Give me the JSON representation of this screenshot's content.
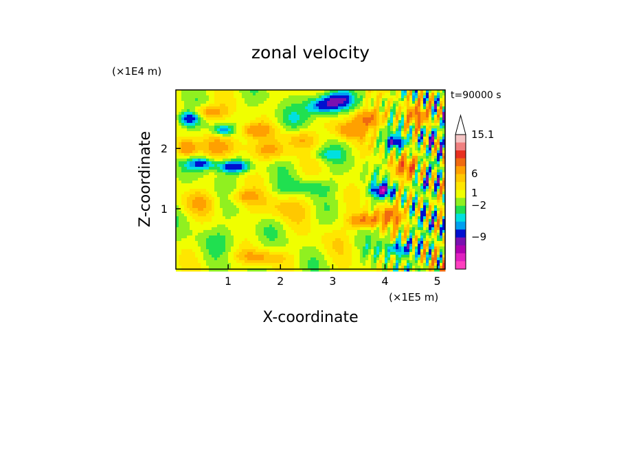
{
  "chart_data": {
    "type": "heatmap",
    "title": "zonal velocity",
    "xlabel": "X-coordinate",
    "ylabel": "Z-coordinate",
    "x_unit_label": "(×1E5 m)",
    "y_unit_label": "(×1E4 m)",
    "time_label": "t=90000 s",
    "xlim": [
      0,
      5.15
    ],
    "ylim": [
      0,
      2.97
    ],
    "x_ticks": [
      1,
      2,
      3,
      4,
      5
    ],
    "y_ticks": [
      1,
      2
    ],
    "colorbar": {
      "labels": [
        "15.1",
        "6",
        "1",
        "−2",
        "−9"
      ],
      "levels": [
        {
          "value": 15.1,
          "color": "#f4c4c4"
        },
        {
          "value": 12,
          "color": "#f08080"
        },
        {
          "value": 9,
          "color": "#e83020"
        },
        {
          "value": 6,
          "color": "#f06a10"
        },
        {
          "value": 4,
          "color": "#ffa000"
        },
        {
          "value": 3,
          "color": "#ffc800"
        },
        {
          "value": 2,
          "color": "#ffe600"
        },
        {
          "value": 1,
          "color": "#f0ff00"
        },
        {
          "value": 0,
          "color": "#90f020"
        },
        {
          "value": -1,
          "color": "#20e050"
        },
        {
          "value": -2,
          "color": "#00e0e0"
        },
        {
          "value": -3,
          "color": "#00a0f0"
        },
        {
          "value": -5,
          "color": "#0010d0"
        },
        {
          "value": -7,
          "color": "#7a10b0"
        },
        {
          "value": -9,
          "color": "#b000b0"
        },
        {
          "value": -11,
          "color": "#e020c0"
        },
        {
          "value": -13,
          "color": "#ff40c0"
        }
      ]
    },
    "blobs": [
      {
        "x": 0.25,
        "y": 2.5,
        "v": -6,
        "sx": 0.2,
        "sy": 0.12
      },
      {
        "x": 0.6,
        "y": 2.6,
        "v": 4,
        "sx": 0.35,
        "sy": 0.12
      },
      {
        "x": 0.9,
        "y": 2.3,
        "v": -4,
        "sx": 0.2,
        "sy": 0.08
      },
      {
        "x": 0.2,
        "y": 2.0,
        "v": 5,
        "sx": 0.2,
        "sy": 0.15
      },
      {
        "x": 0.5,
        "y": 1.75,
        "v": -5,
        "sx": 0.25,
        "sy": 0.1
      },
      {
        "x": 1.1,
        "y": 1.7,
        "v": -6,
        "sx": 0.3,
        "sy": 0.1
      },
      {
        "x": 1.0,
        "y": 2.05,
        "v": 3,
        "sx": 0.45,
        "sy": 0.18
      },
      {
        "x": 1.5,
        "y": 2.3,
        "v": 4,
        "sx": 0.3,
        "sy": 0.12
      },
      {
        "x": 1.8,
        "y": 1.95,
        "v": 3,
        "sx": 0.35,
        "sy": 0.15
      },
      {
        "x": 2.2,
        "y": 2.5,
        "v": -1,
        "sx": 0.35,
        "sy": 0.15
      },
      {
        "x": 2.4,
        "y": 2.15,
        "v": 3,
        "sx": 0.3,
        "sy": 0.15
      },
      {
        "x": 2.8,
        "y": 2.7,
        "v": -6,
        "sx": 0.3,
        "sy": 0.15
      },
      {
        "x": 3.1,
        "y": 2.8,
        "v": -6,
        "sx": 0.25,
        "sy": 0.12
      },
      {
        "x": 3.3,
        "y": 2.3,
        "v": 4,
        "sx": 0.3,
        "sy": 0.15
      },
      {
        "x": 3.7,
        "y": 2.5,
        "v": 5,
        "sx": 0.3,
        "sy": 0.15
      },
      {
        "x": 4.2,
        "y": 2.1,
        "v": -5,
        "sx": 0.2,
        "sy": 0.1
      },
      {
        "x": 4.6,
        "y": 2.55,
        "v": 4,
        "sx": 0.25,
        "sy": 0.15
      },
      {
        "x": 4.85,
        "y": 2.2,
        "v": -4,
        "sx": 0.2,
        "sy": 0.12
      },
      {
        "x": 4.4,
        "y": 1.7,
        "v": 5,
        "sx": 0.25,
        "sy": 0.15
      },
      {
        "x": 3.95,
        "y": 1.3,
        "v": -7,
        "sx": 0.2,
        "sy": 0.1
      },
      {
        "x": 4.7,
        "y": 1.4,
        "v": -3,
        "sx": 0.2,
        "sy": 0.12
      },
      {
        "x": 3.6,
        "y": 0.8,
        "v": 5,
        "sx": 0.3,
        "sy": 0.12
      },
      {
        "x": 4.1,
        "y": 0.9,
        "v": 5,
        "sx": 0.25,
        "sy": 0.15
      },
      {
        "x": 4.3,
        "y": 0.35,
        "v": -5,
        "sx": 0.3,
        "sy": 0.12
      },
      {
        "x": 2.5,
        "y": 1.35,
        "v": -2,
        "sx": 0.5,
        "sy": 0.12
      },
      {
        "x": 2.0,
        "y": 1.0,
        "v": 2,
        "sx": 0.6,
        "sy": 0.2
      },
      {
        "x": 3.0,
        "y": 0.5,
        "v": 1,
        "sx": 0.4,
        "sy": 0.25
      },
      {
        "x": 1.0,
        "y": 0.5,
        "v": -1,
        "sx": 0.5,
        "sy": 0.2
      },
      {
        "x": 1.6,
        "y": 0.2,
        "v": 3,
        "sx": 0.5,
        "sy": 0.12
      },
      {
        "x": 0.4,
        "y": 1.1,
        "v": 2,
        "sx": 0.35,
        "sy": 0.2
      },
      {
        "x": 1.3,
        "y": 1.2,
        "v": 3,
        "sx": 0.3,
        "sy": 0.12
      },
      {
        "x": 2.9,
        "y": 1.9,
        "v": -2,
        "sx": 0.3,
        "sy": 0.1
      }
    ]
  }
}
